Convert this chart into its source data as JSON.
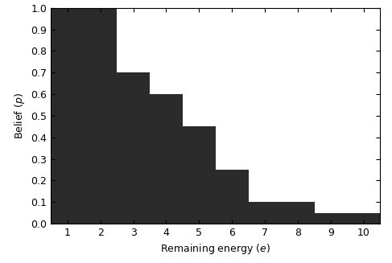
{
  "title": "",
  "xlabel": "Remaining energy ($e$)",
  "ylabel": "Belief ($p$)",
  "xlim": [
    0.5,
    10.5
  ],
  "ylim": [
    0,
    1.0
  ],
  "xticks": [
    1,
    2,
    3,
    4,
    5,
    6,
    7,
    8,
    9,
    10
  ],
  "yticks": [
    0,
    0.1,
    0.2,
    0.3,
    0.4,
    0.5,
    0.6,
    0.7,
    0.8,
    0.9,
    1.0
  ],
  "step_edges": [
    0.5,
    2.5,
    3.5,
    4.5,
    5.5,
    6.5,
    8.5,
    9.5,
    10.5
  ],
  "step_heights": [
    1.0,
    0.7,
    0.6,
    0.45,
    0.25,
    0.1,
    0.05,
    0.05
  ],
  "fill_color": "#2b2b2b",
  "background_color": "#ffffff",
  "figsize": [
    4.87,
    3.27
  ],
  "dpi": 100
}
